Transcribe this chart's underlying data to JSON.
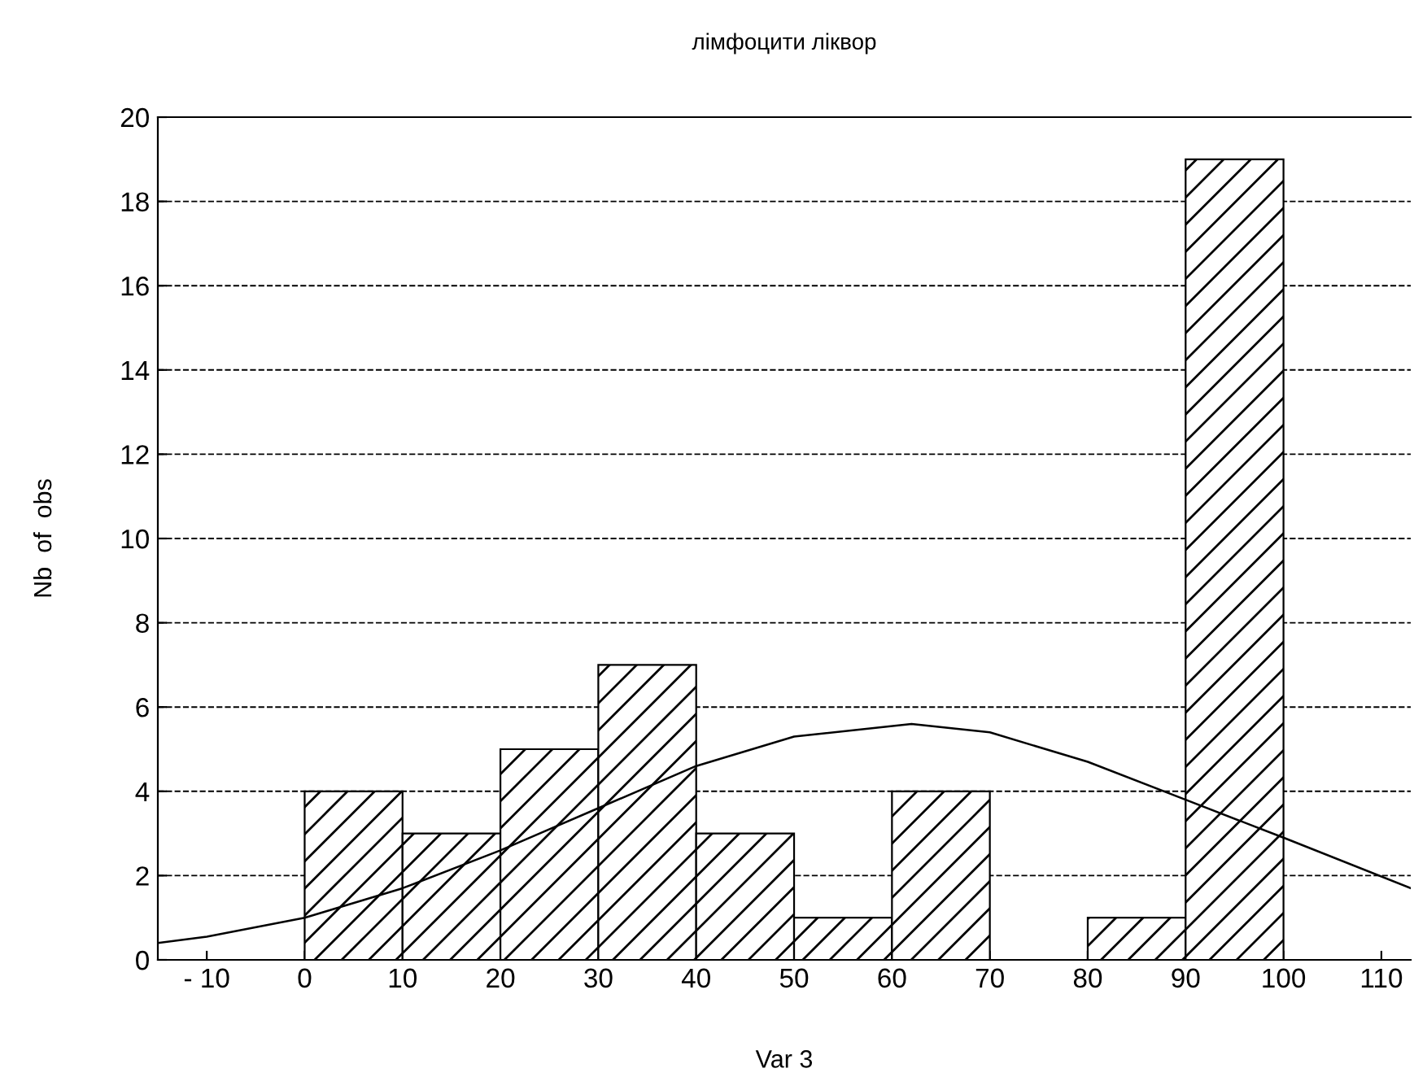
{
  "chart_data": {
    "type": "histogram",
    "title": "лімфоцити ліквор",
    "xlabel": "Var 3",
    "ylabel": "Nb  of  obs",
    "bins": [
      0,
      10,
      20,
      30,
      40,
      50,
      60,
      70,
      80,
      90,
      100
    ],
    "values": [
      4,
      3,
      5,
      7,
      3,
      1,
      4,
      0,
      1,
      19
    ],
    "series": [
      {
        "type": "line",
        "color": "#000000",
        "x": [
          -15,
          -10,
          0,
          10,
          20,
          30,
          40,
          50,
          62,
          70,
          80,
          90,
          100,
          113
        ],
        "values": [
          0.4,
          0.55,
          1.0,
          1.7,
          2.6,
          3.6,
          4.6,
          5.3,
          5.6,
          5.4,
          4.7,
          3.8,
          2.9,
          1.7
        ]
      }
    ],
    "xlim": [
      -15,
      113
    ],
    "ylim": [
      0,
      20
    ],
    "xticks": [
      {
        "value": -10,
        "label": "- 10"
      },
      0,
      10,
      20,
      30,
      40,
      50,
      60,
      70,
      80,
      90,
      100,
      110
    ],
    "yticks": [
      0,
      2,
      4,
      6,
      8,
      10,
      12,
      14,
      16,
      18,
      20
    ],
    "grid": "y"
  }
}
